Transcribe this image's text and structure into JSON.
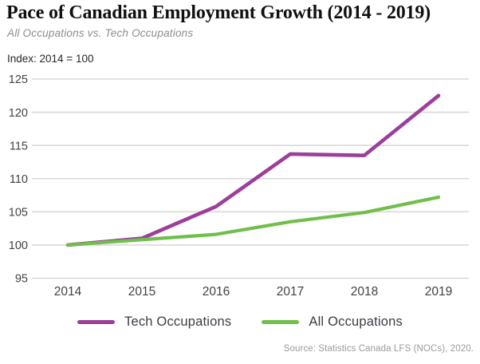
{
  "header": {
    "title": "Pace of Canadian Employment Growth (2014 - 2019)",
    "subtitle": "All Occupations vs. Tech Occupations"
  },
  "index_note": "Index: 2014 = 100",
  "chart_data": {
    "type": "line",
    "title": "Pace of Canadian Employment Growth (2014 - 2019)",
    "subtitle": "All Occupations vs. Tech Occupations",
    "index_label": "Index: 2014 = 100",
    "x": [
      "2014",
      "2015",
      "2016",
      "2017",
      "2018",
      "2019"
    ],
    "series": [
      {
        "name": "Tech Occupations",
        "color": "#9c3e9a",
        "values": [
          100,
          101,
          105.8,
          113.7,
          113.5,
          122.5
        ]
      },
      {
        "name": "All Occupations",
        "color": "#70bf4b",
        "values": [
          100,
          100.8,
          101.6,
          103.5,
          104.9,
          107.2
        ]
      }
    ],
    "ylim": [
      95,
      125
    ],
    "yticks": [
      95,
      100,
      105,
      110,
      115,
      120,
      125
    ],
    "xlabel": "",
    "ylabel": "Index (2014 = 100)",
    "grid": true,
    "gridline_color": "#d9d9d9",
    "legend_position": "bottom"
  },
  "legend": {
    "items": [
      {
        "label": "Tech Occupations",
        "color": "#9c3e9a"
      },
      {
        "label": "All Occupations",
        "color": "#70bf4b"
      }
    ]
  },
  "source": "Source: Statistics Canada LFS (NOCs), 2020."
}
